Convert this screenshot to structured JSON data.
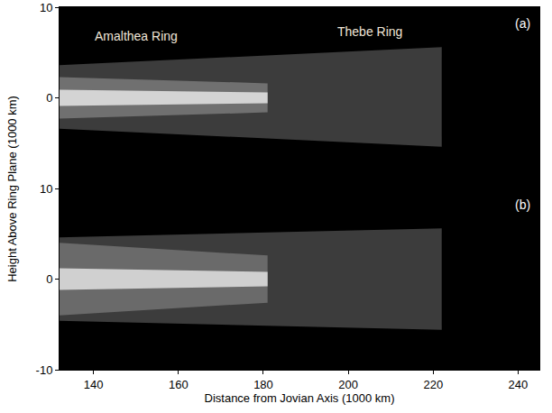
{
  "chart_data": [
    {
      "type": "area",
      "label": "(a)",
      "ylabel": "Height Above Ring Plane (1000 km)",
      "xlim": [
        132,
        245
      ],
      "xticks": [
        140,
        160,
        180,
        200,
        220,
        240
      ],
      "ylim": [
        -10,
        10
      ],
      "yticks": [
        0,
        10
      ],
      "tick_labels": "y",
      "annotations": [
        {
          "text": "Amalthea Ring",
          "x": 150,
          "y": 6.8
        },
        {
          "text": "Thebe Ring",
          "x": 205,
          "y": 7.3
        }
      ],
      "series": [
        {
          "color": "#3c3c3c",
          "x": [
            132,
            222
          ],
          "upper": [
            3.6,
            5.6
          ],
          "lower": [
            -3.4,
            -5.4
          ]
        },
        {
          "color": "#707070",
          "x": [
            132,
            181
          ],
          "upper": [
            2.3,
            1.6
          ],
          "lower": [
            -2.3,
            -1.6
          ]
        },
        {
          "color": "#d4d4d4",
          "x": [
            132,
            181
          ],
          "upper": [
            0.9,
            0.6
          ],
          "lower": [
            -0.9,
            -0.6
          ]
        }
      ]
    },
    {
      "type": "area",
      "label": "(b)",
      "xlabel": "Distance from Jovian Axis (1000 km)",
      "xlim": [
        132,
        245
      ],
      "xticks": [
        140,
        160,
        180,
        200,
        220,
        240
      ],
      "ylim": [
        -10,
        10
      ],
      "yticks": [
        -10,
        0,
        10
      ],
      "series": [
        {
          "color": "#3c3c3c",
          "x": [
            132,
            222
          ],
          "upper": [
            4.6,
            5.6
          ],
          "lower": [
            -4.6,
            -5.6
          ]
        },
        {
          "color": "#6a6a6a",
          "x": [
            132,
            181
          ],
          "upper": [
            4.0,
            2.6
          ],
          "lower": [
            -4.0,
            -2.6
          ]
        },
        {
          "color": "#d0d0d0",
          "x": [
            132,
            181
          ],
          "upper": [
            1.2,
            0.8
          ],
          "lower": [
            -1.2,
            -0.8
          ]
        }
      ]
    }
  ]
}
